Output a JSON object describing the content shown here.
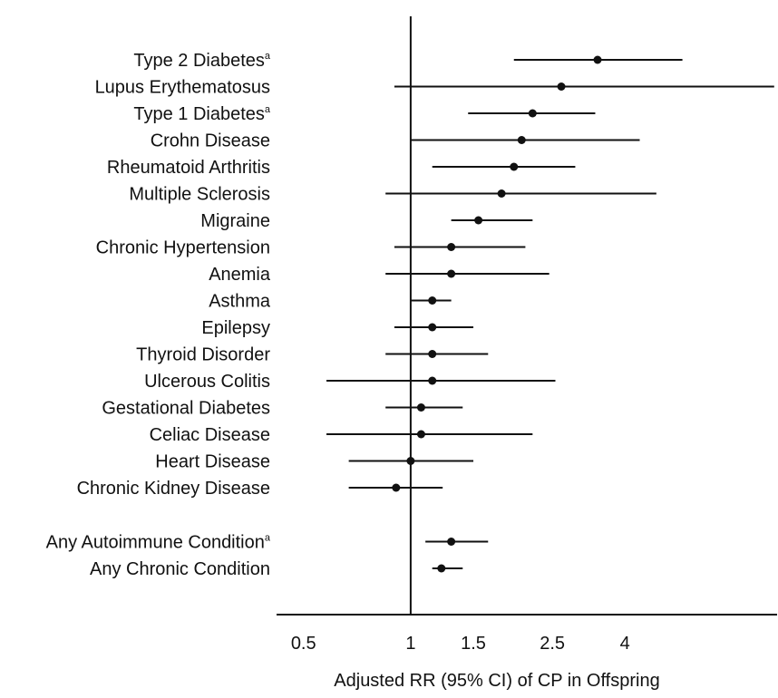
{
  "chart_data": {
    "type": "forest",
    "xlabel": "Adjusted RR (95% CI) of CP in Offspring",
    "x_scale": "log",
    "xlim": [
      0.42,
      10.7
    ],
    "reference_line": 1,
    "x_ticks": [
      {
        "value": 0.5,
        "label": "0.5"
      },
      {
        "value": 1,
        "label": "1"
      },
      {
        "value": 1.5,
        "label": "1.5"
      },
      {
        "value": 2.5,
        "label": "2.5"
      },
      {
        "value": 4,
        "label": "4"
      }
    ],
    "rows": [
      {
        "label": "Type 2 Diabetes",
        "sup": "a",
        "rr": 3.35,
        "lo": 1.95,
        "hi": 5.8
      },
      {
        "label": "Lupus Erythematosus",
        "sup": "",
        "rr": 2.65,
        "lo": 0.9,
        "hi": 10.5
      },
      {
        "label": "Type 1 Diabetes",
        "sup": "a",
        "rr": 2.2,
        "lo": 1.45,
        "hi": 3.3
      },
      {
        "label": "Crohn Disease",
        "sup": "",
        "rr": 2.05,
        "lo": 1.0,
        "hi": 4.4
      },
      {
        "label": "Rheumatoid Arthritis",
        "sup": "",
        "rr": 1.95,
        "lo": 1.15,
        "hi": 2.9
      },
      {
        "label": "Multiple Sclerosis",
        "sup": "",
        "rr": 1.8,
        "lo": 0.85,
        "hi": 4.9
      },
      {
        "label": "Migraine",
        "sup": "",
        "rr": 1.55,
        "lo": 1.3,
        "hi": 2.2
      },
      {
        "label": "Chronic Hypertension",
        "sup": "",
        "rr": 1.3,
        "lo": 0.9,
        "hi": 2.1
      },
      {
        "label": "Anemia",
        "sup": "",
        "rr": 1.3,
        "lo": 0.85,
        "hi": 2.45
      },
      {
        "label": "Asthma",
        "sup": "",
        "rr": 1.15,
        "lo": 1.0,
        "hi": 1.3
      },
      {
        "label": "Epilepsy",
        "sup": "",
        "rr": 1.15,
        "lo": 0.9,
        "hi": 1.5
      },
      {
        "label": "Thyroid Disorder",
        "sup": "",
        "rr": 1.15,
        "lo": 0.85,
        "hi": 1.65
      },
      {
        "label": "Ulcerous  Colitis",
        "sup": "",
        "rr": 1.15,
        "lo": 0.58,
        "hi": 2.55
      },
      {
        "label": "Gestational  Diabetes",
        "sup": "",
        "rr": 1.07,
        "lo": 0.85,
        "hi": 1.4
      },
      {
        "label": "Celiac Disease",
        "sup": "",
        "rr": 1.07,
        "lo": 0.58,
        "hi": 2.2
      },
      {
        "label": "Heart Disease",
        "sup": "",
        "rr": 1.0,
        "lo": 0.67,
        "hi": 1.5
      },
      {
        "label": "Chronic Kidney Disease",
        "sup": "",
        "rr": 0.91,
        "lo": 0.67,
        "hi": 1.23
      },
      {
        "label": "Any Autoimmune Condition",
        "sup": "a",
        "rr": 1.3,
        "lo": 1.1,
        "hi": 1.65,
        "group_gap": true
      },
      {
        "label": "Any Chronic Condition",
        "sup": "",
        "rr": 1.22,
        "lo": 1.15,
        "hi": 1.4
      }
    ]
  }
}
